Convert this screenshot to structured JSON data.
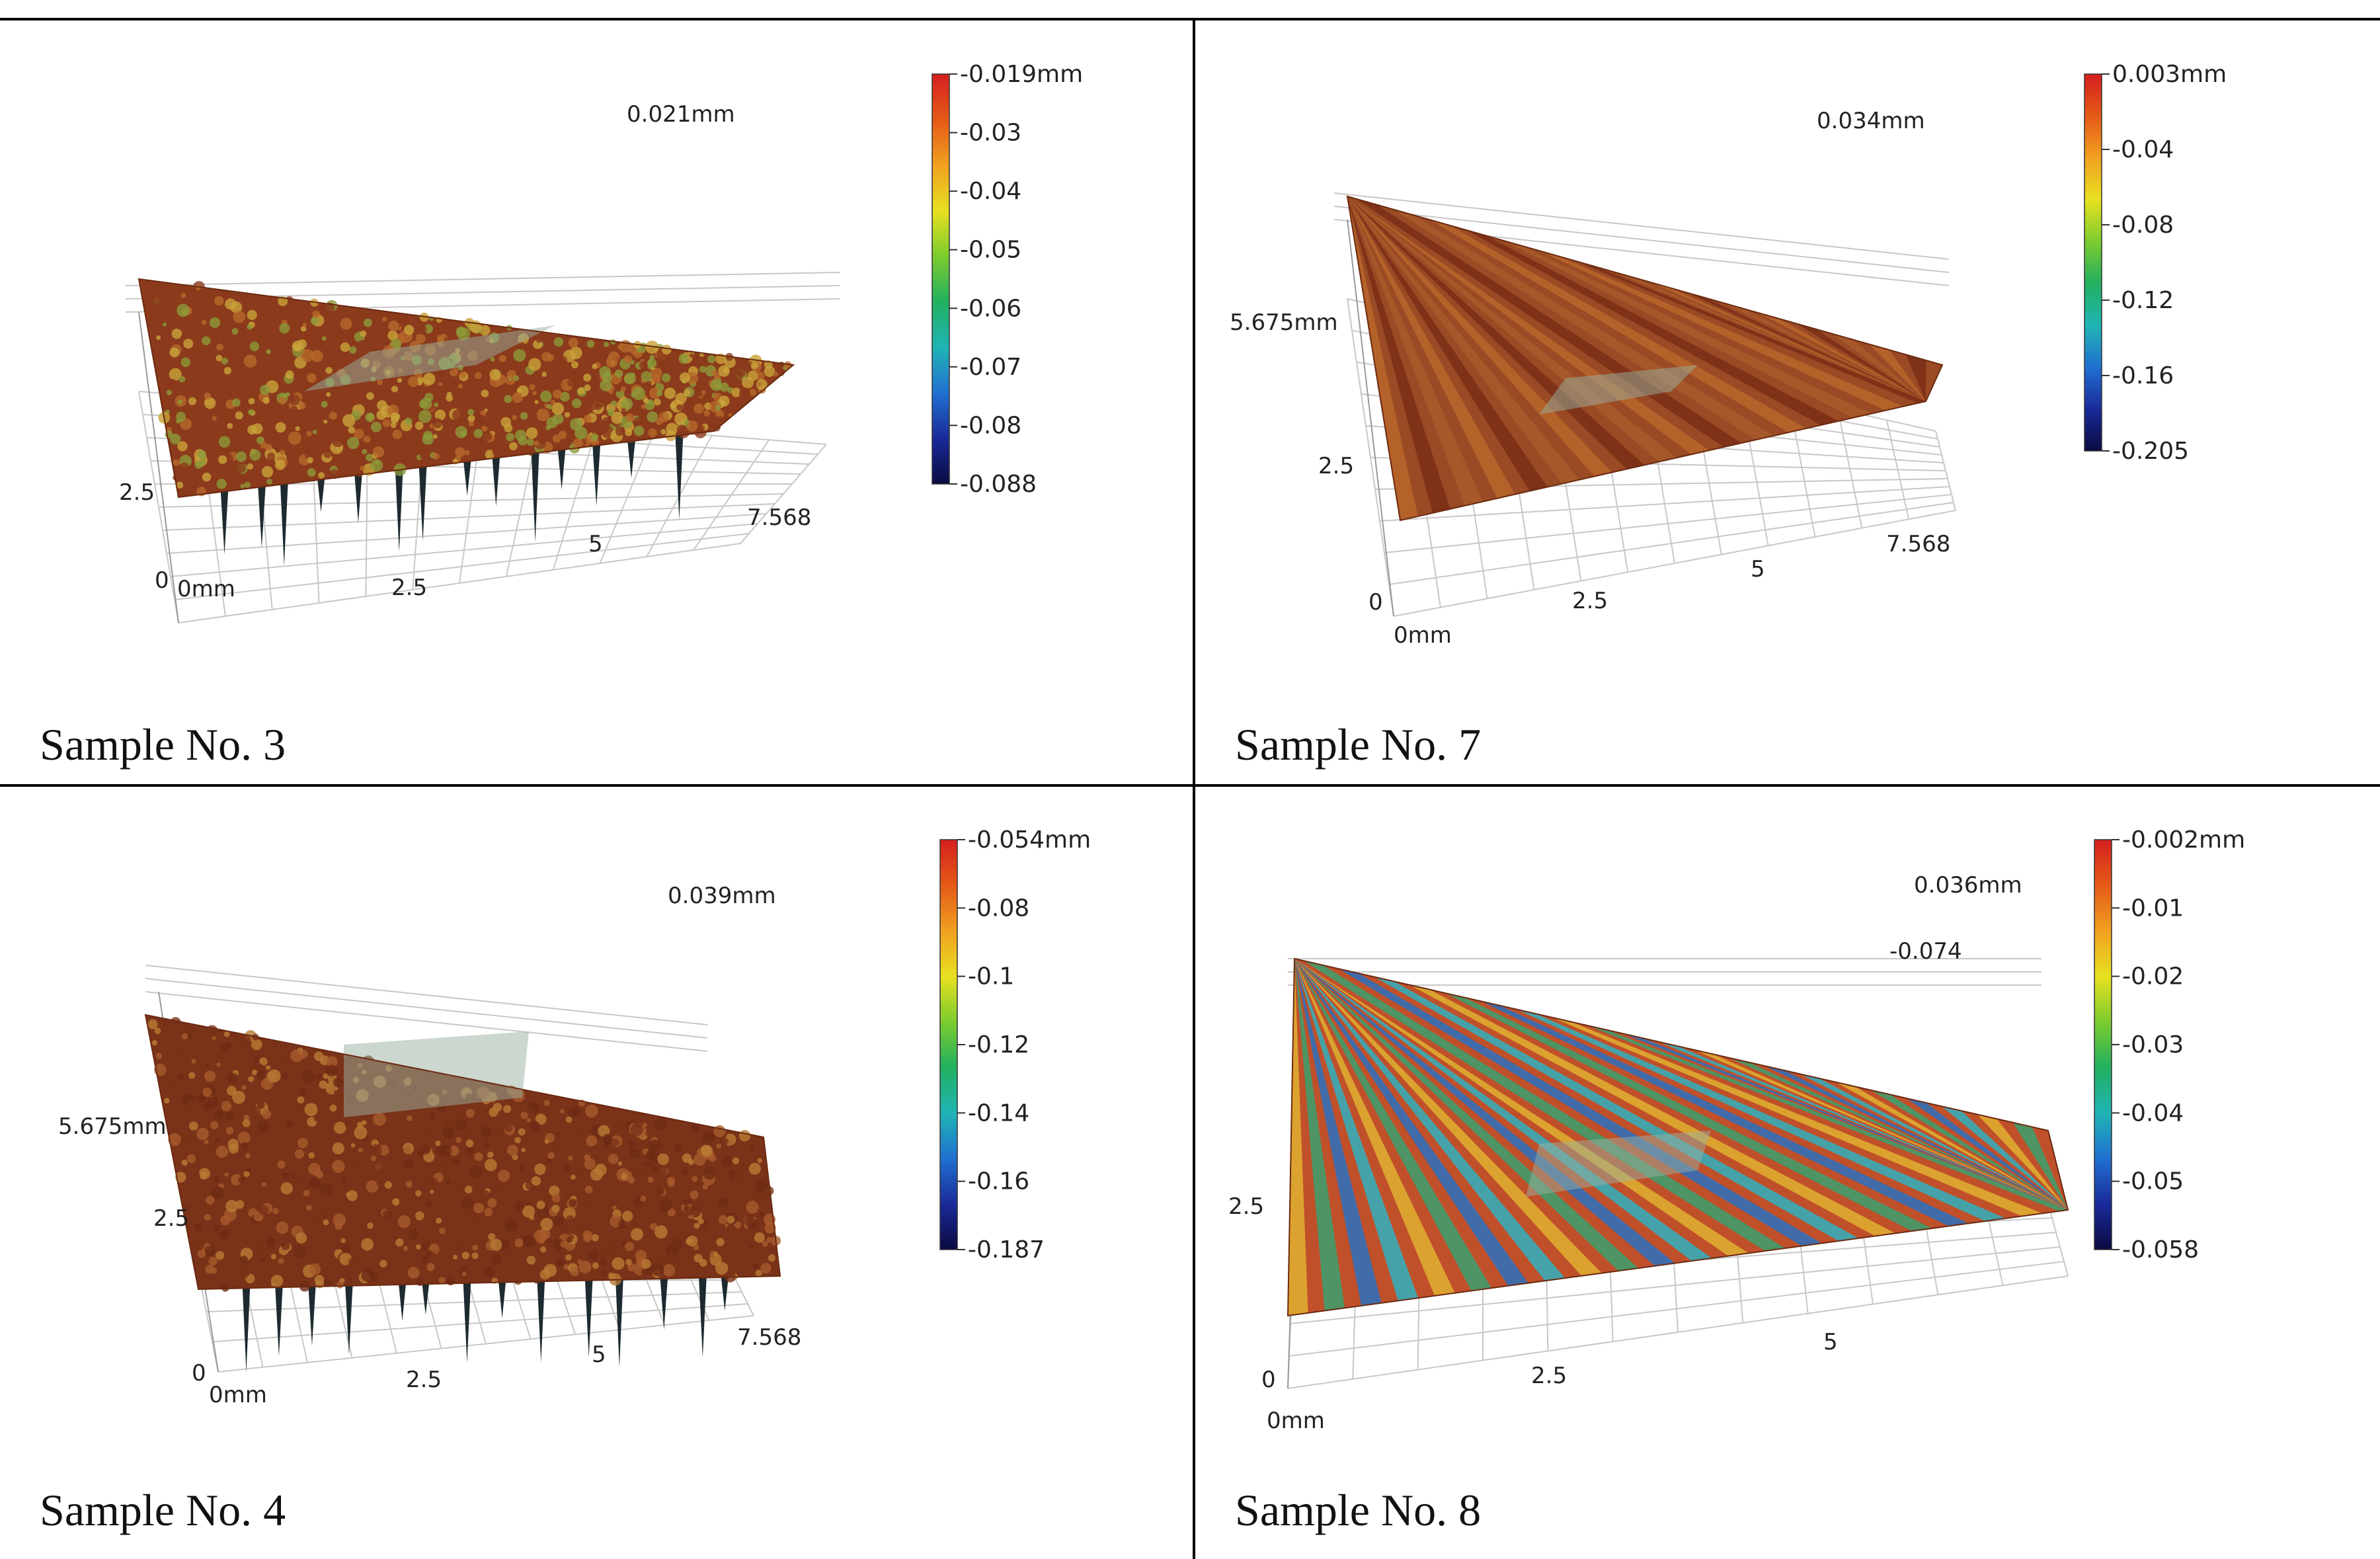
{
  "figure": {
    "panels": [
      {
        "id": "sample-3",
        "caption": "Sample No. 3",
        "pattern": "spotted",
        "colors": [
          "#8b3a1c",
          "#b5692a",
          "#c9a23a",
          "#8c9a3a"
        ],
        "z_top_label": "0.021mm",
        "axis_labels": {
          "origin": "0mm",
          "x_mid": "2.5",
          "x_mid2": "5",
          "x_end": "7.568",
          "y_zero": "0",
          "y_mid": "2.5",
          "y_end": ""
        },
        "colorbar": {
          "labels": [
            "-0.019mm",
            "-0.03",
            "-0.04",
            "-0.05",
            "-0.06",
            "-0.07",
            "-0.08",
            "-0.088"
          ]
        }
      },
      {
        "id": "sample-7",
        "caption": "Sample No. 7",
        "pattern": "striped",
        "colors": [
          "#9a4a24",
          "#b8652c",
          "#7a2e16",
          "#a85a2c"
        ],
        "z_top_label": "0.034mm",
        "axis_labels": {
          "origin": "0mm",
          "x_mid": "2.5",
          "x_mid2": "5",
          "x_end": "7.568",
          "y_zero": "0",
          "y_mid": "2.5",
          "y_end": "5.675mm"
        },
        "colorbar": {
          "labels": [
            "0.003mm",
            "-0.04",
            "-0.08",
            "-0.12",
            "-0.16",
            "-0.205"
          ]
        }
      },
      {
        "id": "sample-4",
        "caption": "Sample No. 4",
        "pattern": "spotted",
        "colors": [
          "#7a3218",
          "#a85a2c",
          "#b87a34",
          "#6e2a14"
        ],
        "z_top_label": "0.039mm",
        "axis_labels": {
          "origin": "0mm",
          "x_mid": "2.5",
          "x_mid2": "5",
          "x_end": "7.568",
          "y_zero": "0",
          "y_mid": "2.5",
          "y_end": "5.675mm"
        },
        "colorbar": {
          "labels": [
            "-0.054mm",
            "-0.08",
            "-0.1",
            "-0.12",
            "-0.14",
            "-0.16",
            "-0.187"
          ]
        }
      },
      {
        "id": "sample-8",
        "caption": "Sample No. 8",
        "pattern": "rainbow",
        "colors": [
          "#c0502a",
          "#e0b030",
          "#3aa070",
          "#2a70c0",
          "#30b0c0"
        ],
        "z_top_label": "0.036mm",
        "z_second_label": "-0.074",
        "axis_labels": {
          "origin": "0mm",
          "x_mid": "2.5",
          "x_mid2": "5",
          "x_end": "",
          "y_zero": "0",
          "y_mid": "2.5",
          "y_end": ""
        },
        "colorbar": {
          "labels": [
            "-0.002mm",
            "-0.01",
            "-0.02",
            "-0.03",
            "-0.04",
            "-0.05",
            "-0.058"
          ]
        }
      }
    ]
  }
}
